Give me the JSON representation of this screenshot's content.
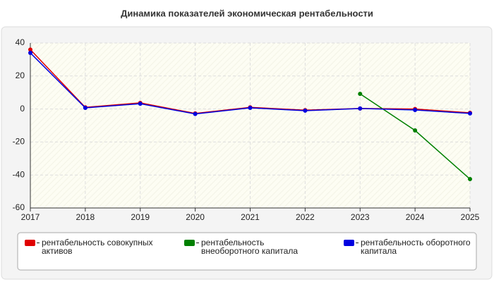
{
  "chart_data": {
    "type": "line",
    "title": "Динамика показателей экономическая рентабельности",
    "x": [
      2017,
      2018,
      2019,
      2020,
      2021,
      2022,
      2023,
      2024,
      2025
    ],
    "xlim": [
      2017,
      2025
    ],
    "xticks": [
      2017,
      2018,
      2019,
      2020,
      2021,
      2022,
      2023,
      2024,
      2025
    ],
    "ylim": [
      -60,
      40
    ],
    "yticks": [
      -60,
      -40,
      -20,
      0,
      20,
      40
    ],
    "grid": true,
    "series": [
      {
        "name": "рентабельность совокупных активов",
        "color": "#e00000",
        "values": [
          36,
          1,
          3.7,
          -2.7,
          1,
          -0.7,
          0.3,
          0,
          -2.3
        ]
      },
      {
        "name": "рентабельность внеоборотного капитала",
        "color": "#008000",
        "values": [
          null,
          null,
          null,
          null,
          null,
          null,
          9.2,
          -13,
          -42.5
        ]
      },
      {
        "name": "рентабельность оборотного капитала",
        "color": "#0000e0",
        "values": [
          34,
          0.7,
          3.2,
          -3,
          0.7,
          -1,
          0.3,
          -0.6,
          -2.7
        ]
      }
    ]
  }
}
